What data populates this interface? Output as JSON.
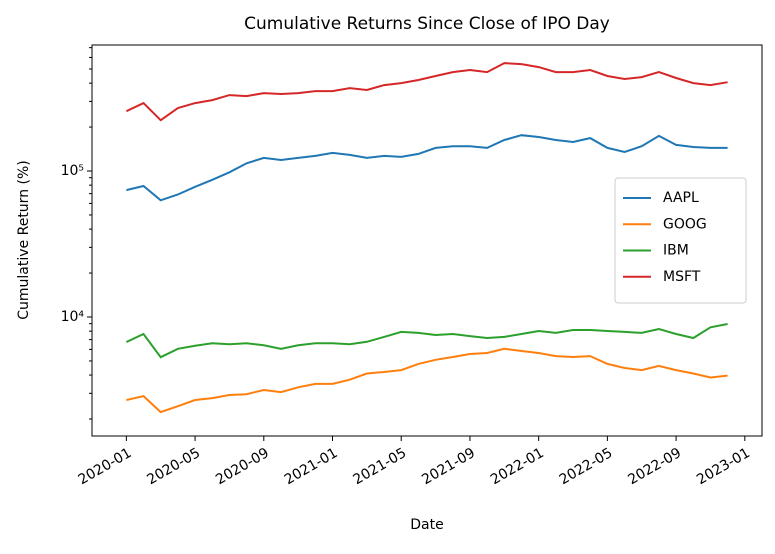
{
  "chart_data": {
    "type": "line",
    "title": "Cumulative Returns Since Close of IPO Day",
    "xlabel": "Date",
    "ylabel": "Cumulative Return (%)",
    "x": [
      "2020-01",
      "2020-02",
      "2020-03",
      "2020-04",
      "2020-05",
      "2020-06",
      "2020-07",
      "2020-08",
      "2020-09",
      "2020-10",
      "2020-11",
      "2020-12",
      "2021-01",
      "2021-02",
      "2021-03",
      "2021-04",
      "2021-05",
      "2021-06",
      "2021-07",
      "2021-08",
      "2021-09",
      "2021-10",
      "2021-11",
      "2021-12",
      "2022-01",
      "2022-02",
      "2022-03",
      "2022-04",
      "2022-05",
      "2022-06",
      "2022-07",
      "2022-08",
      "2022-09",
      "2022-10",
      "2022-11",
      "2022-12"
    ],
    "series": [
      {
        "name": "AAPL",
        "color": "#1f77b4",
        "values": [
          74000,
          79000,
          63000,
          69000,
          78000,
          87000,
          98000,
          113000,
          123000,
          119000,
          123000,
          127000,
          133000,
          129000,
          123000,
          127000,
          125000,
          131000,
          144000,
          148000,
          148000,
          144000,
          163000,
          176000,
          171000,
          163000,
          158000,
          168000,
          144000,
          135000,
          148000,
          174000,
          151000,
          146000,
          144000,
          144000
        ]
      },
      {
        "name": "GOOG",
        "color": "#ff7f0e",
        "values": [
          2700,
          2870,
          2230,
          2450,
          2700,
          2780,
          2920,
          2960,
          3160,
          3060,
          3300,
          3480,
          3480,
          3720,
          4100,
          4200,
          4330,
          4770,
          5090,
          5320,
          5580,
          5670,
          6050,
          5850,
          5670,
          5400,
          5320,
          5400,
          4770,
          4470,
          4330,
          4620,
          4330,
          4100,
          3850,
          3970
        ]
      },
      {
        "name": "IBM",
        "color": "#2ca02c",
        "values": [
          6740,
          7650,
          5300,
          6050,
          6350,
          6600,
          6500,
          6600,
          6400,
          6050,
          6400,
          6600,
          6600,
          6500,
          6760,
          7300,
          7900,
          7780,
          7530,
          7650,
          7400,
          7180,
          7300,
          7650,
          8020,
          7780,
          8150,
          8150,
          8020,
          7900,
          7780,
          8280,
          7650,
          7180,
          8500,
          8950
        ]
      },
      {
        "name": "MSFT",
        "color": "#d62728",
        "values": [
          257000,
          292000,
          223000,
          270000,
          292000,
          306000,
          331000,
          326000,
          342000,
          337000,
          342000,
          353000,
          353000,
          370000,
          359000,
          388000,
          400000,
          420000,
          448000,
          476000,
          492000,
          476000,
          549000,
          540000,
          515000,
          476000,
          476000,
          492000,
          448000,
          427000,
          440000,
          476000,
          434000,
          400000,
          388000,
          406000
        ]
      }
    ],
    "xlim": [
      "2019-11",
      "2023-02"
    ],
    "xticks": [
      "2020-01",
      "2020-05",
      "2020-09",
      "2021-01",
      "2021-05",
      "2021-09",
      "2022-01",
      "2022-05",
      "2022-09",
      "2023-01"
    ],
    "ylim": [
      1530,
      730000
    ],
    "yscale": "log",
    "yticks": [
      {
        "value": 10000,
        "label": "10⁴"
      },
      {
        "value": 100000,
        "label": "10⁵"
      }
    ],
    "yminorticks": [
      2000,
      3000,
      4000,
      5000,
      6000,
      7000,
      8000,
      9000,
      20000,
      30000,
      40000,
      50000,
      60000,
      70000,
      80000,
      90000,
      200000,
      300000,
      400000,
      500000,
      600000,
      700000
    ],
    "grid": false,
    "legend": "center right"
  }
}
